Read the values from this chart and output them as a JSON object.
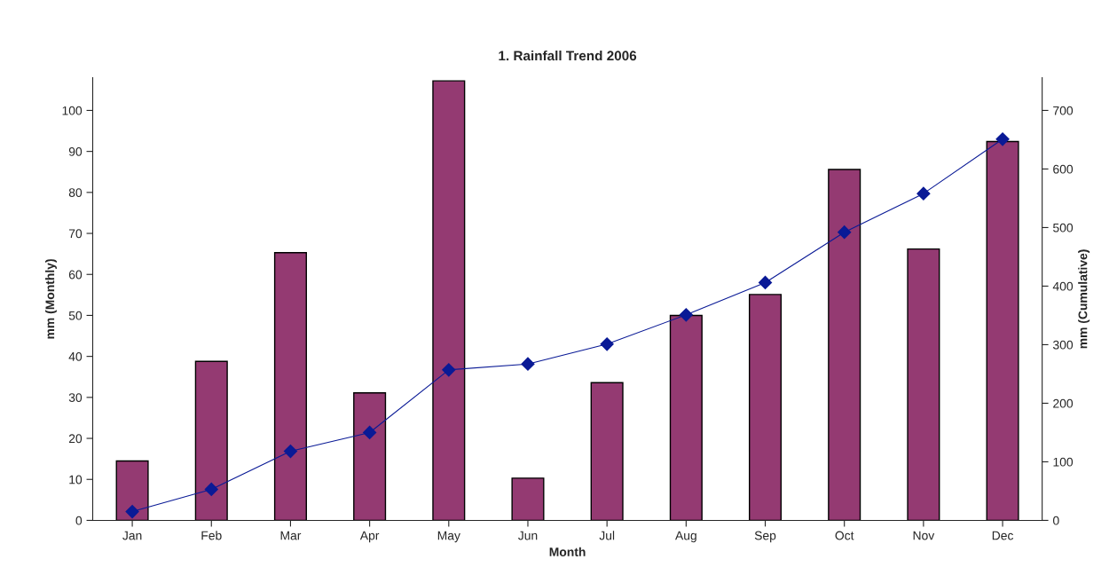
{
  "chart_data": {
    "type": "bar",
    "title": "1. Rainfall Trend 2006",
    "xlabel": "Month",
    "ylabel": "mm (Monthly)",
    "y2label": "mm (Cumulative)",
    "categories": [
      "Jan",
      "Feb",
      "Mar",
      "Apr",
      "May",
      "Jun",
      "Jul",
      "Aug",
      "Sep",
      "Oct",
      "Nov",
      "Dec"
    ],
    "series": [
      {
        "color": "#943a72",
        "values": [
          14.5,
          38.8,
          65.3,
          31.1,
          107.2,
          10.3,
          33.6,
          50,
          55.1,
          85.6,
          66.2,
          92.4
        ]
      },
      {
        "type": "line",
        "axis": "y2",
        "color": "#0a1a96",
        "marker": "diamond",
        "values": [
          15,
          53,
          118,
          150,
          257,
          267,
          301,
          351,
          406,
          492,
          558,
          651
        ]
      }
    ],
    "ylim": [
      0,
      108
    ],
    "yticks": [
      0,
      10,
      20,
      30,
      40,
      50,
      60,
      70,
      80,
      90,
      100
    ],
    "y2lim": [
      0,
      756
    ],
    "y2ticks": [
      0,
      100,
      200,
      300,
      400,
      500,
      600,
      700
    ],
    "grid": false
  }
}
